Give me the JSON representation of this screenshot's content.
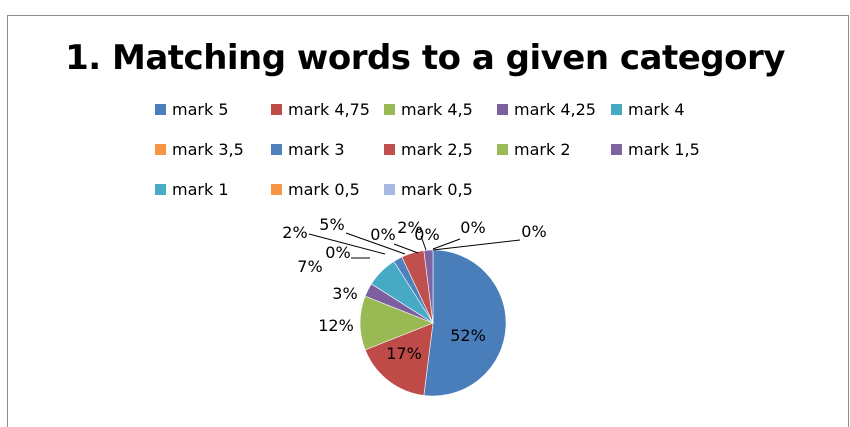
{
  "chart_data": {
    "type": "pie",
    "title": "1. Matching words to a given category",
    "categories": [
      "mark 5",
      "mark 4,75",
      "mark 4,5",
      "mark 4,25",
      "mark 4",
      "mark 3,5",
      "mark 3",
      "mark 2,5",
      "mark 2",
      "mark 1,5",
      "mark 1",
      "mark 0,5",
      "mark 0,5"
    ],
    "values": [
      52,
      17,
      12,
      3,
      7,
      0,
      2,
      5,
      0,
      2,
      0,
      0,
      0
    ],
    "data_labels": [
      "52%",
      "17%",
      "12%",
      "3%",
      "7%",
      "0%",
      "2%",
      "5%",
      "0%",
      "2%",
      "0%",
      "0%",
      "0%"
    ],
    "colors": [
      "#4A7EBB",
      "#BE4B48",
      "#98B954",
      "#7D5FA0",
      "#46AAC5",
      "#F69544",
      "#4F81BD",
      "#C0504D",
      "#9BBB59",
      "#8064A2",
      "#4BACC6",
      "#F79646",
      "#A7B9E3"
    ],
    "legend_position": "top",
    "grid": false
  }
}
